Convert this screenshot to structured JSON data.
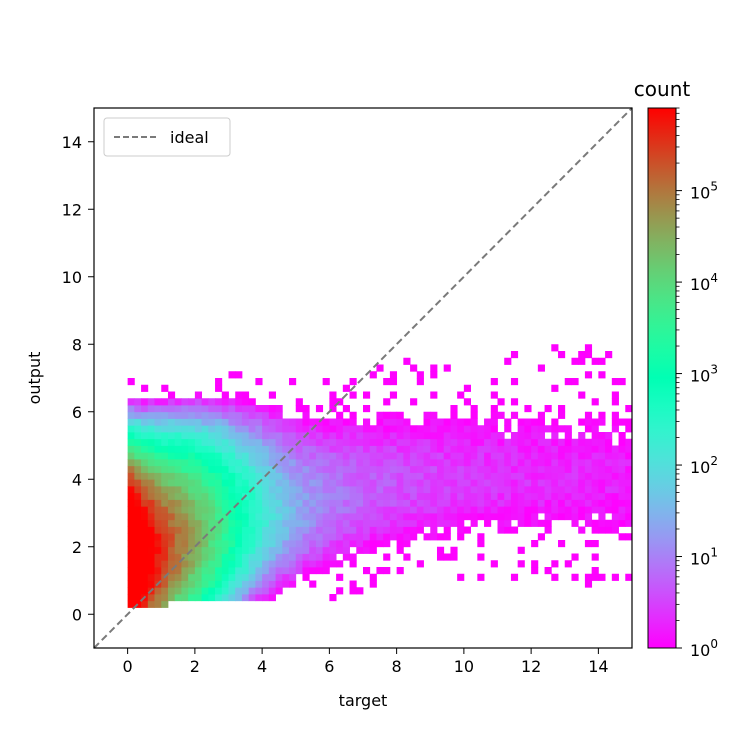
{
  "chart_data": {
    "type": "heatmap",
    "xlabel": "target",
    "ylabel": "output",
    "xlim": [
      -1,
      15
    ],
    "ylim": [
      -1,
      15
    ],
    "x_ticks": [
      0,
      2,
      4,
      6,
      8,
      10,
      12,
      14
    ],
    "y_ticks": [
      0,
      2,
      4,
      6,
      8,
      10,
      12,
      14
    ],
    "colorscale": "rainbow",
    "color_scale_type": "log",
    "colorbar": {
      "title": "count",
      "min": 1,
      "max": 800000,
      "tick_values": [
        1,
        10,
        100,
        1000,
        10000,
        100000
      ],
      "tick_labels": [
        {
          "base": "10",
          "exp": "0"
        },
        {
          "base": "10",
          "exp": "1"
        },
        {
          "base": "10",
          "exp": "2"
        },
        {
          "base": "10",
          "exp": "3"
        },
        {
          "base": "10",
          "exp": "4"
        },
        {
          "base": "10",
          "exp": "5"
        }
      ]
    },
    "series": [
      {
        "name": "ideal",
        "type": "line",
        "style": "dashed",
        "color": "#7a7a7a",
        "x": [
          -1,
          15
        ],
        "y": [
          -1,
          15
        ]
      }
    ],
    "legend": {
      "position": "top-left",
      "entries": [
        "ideal"
      ]
    },
    "density": {
      "bin_size": 0.2,
      "x_range": [
        0,
        15
      ],
      "y_range": [
        0.2,
        13
      ],
      "peak_count": 800000,
      "peak_location": {
        "target": 0.5,
        "output": 1.6
      },
      "ridge": [
        {
          "target": 0,
          "output": 1.5
        },
        {
          "target": 4,
          "output": 2.9
        },
        {
          "target": 8,
          "output": 3.8
        },
        {
          "target": 12,
          "output": 4.0
        },
        {
          "target": 15,
          "output": 3.9
        }
      ]
    }
  }
}
